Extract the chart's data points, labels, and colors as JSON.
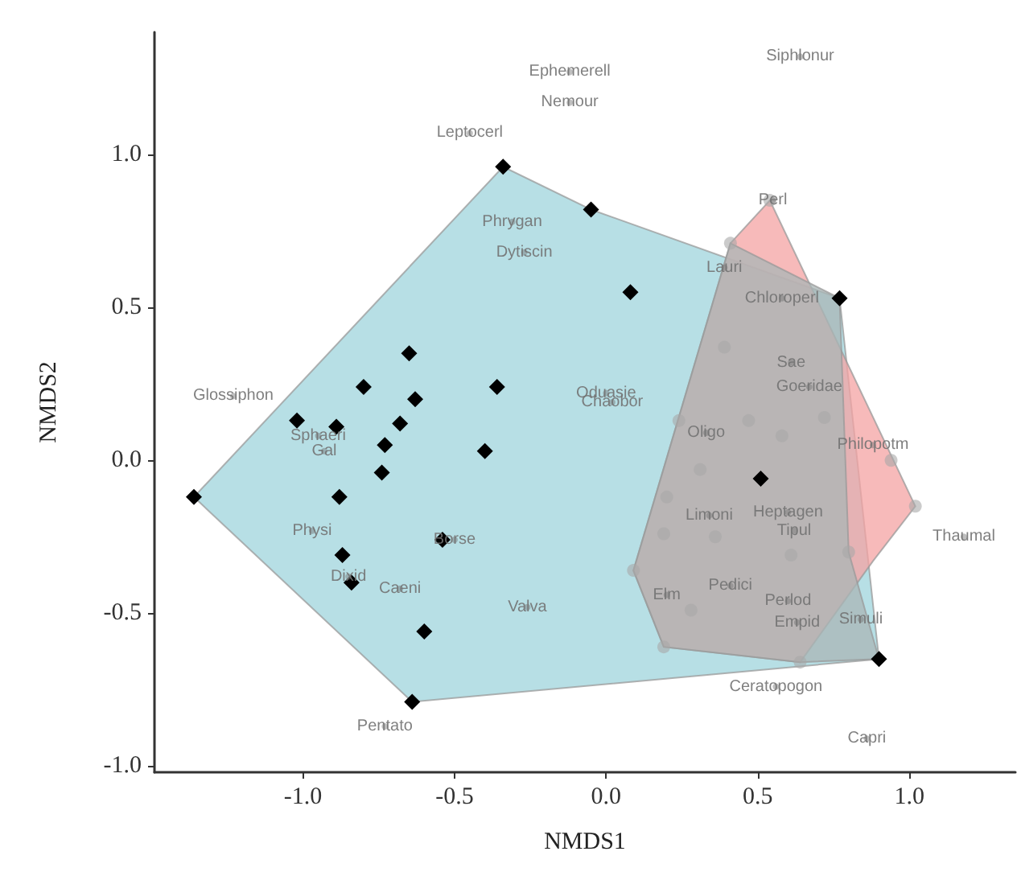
{
  "chart_data": {
    "type": "scatter",
    "xlabel": "NMDS1",
    "ylabel": "NMDS2",
    "xlim": [
      -1.49,
      1.35
    ],
    "ylim": [
      -1.02,
      1.4
    ],
    "xticks": [
      {
        "value": -1,
        "label": "-1.0"
      },
      {
        "value": -0.5,
        "label": "-0.5"
      },
      {
        "value": 0,
        "label": "0.0"
      },
      {
        "value": 0.5,
        "label": "0.5"
      },
      {
        "value": 1,
        "label": "1.0"
      }
    ],
    "yticks": [
      {
        "value": -1,
        "label": "-1.0"
      },
      {
        "value": -0.5,
        "label": "-0.5"
      },
      {
        "value": 0,
        "label": "0.0"
      },
      {
        "value": 0.5,
        "label": "0.5"
      },
      {
        "value": 1,
        "label": "1.0"
      }
    ],
    "grid": false,
    "series": [
      {
        "type": "area",
        "color": "#9fd4dc",
        "x": [
          -1.36,
          -0.34,
          -0.05,
          0.77,
          0.9,
          -0.64
        ],
        "values": [
          -0.12,
          0.96,
          0.82,
          0.53,
          -0.65,
          -0.79
        ]
      },
      {
        "type": "area",
        "color": "#f4a3a3",
        "x": [
          0.41,
          0.54,
          1.02,
          0.88,
          0.64,
          0.19,
          0.09
        ],
        "values": [
          0.71,
          0.85,
          -0.15,
          -0.33,
          -0.66,
          -0.61,
          -0.36
        ]
      },
      {
        "type": "area",
        "color": "#a9b5b5",
        "x": [
          0.41,
          0.77,
          0.8,
          0.9,
          0.64,
          0.19,
          0.09
        ],
        "values": [
          0.71,
          0.53,
          -0.3,
          -0.65,
          -0.66,
          -0.61,
          -0.36
        ]
      },
      {
        "marker": "circle",
        "color": "#a8a8a8",
        "x": [
          0.41,
          0.54,
          0.39,
          0.72,
          0.47,
          0.24,
          0.58,
          0.31,
          0.94,
          0.2,
          0.19,
          0.36,
          0.61,
          0.8,
          0.09,
          0.28,
          0.19,
          0.64,
          1.02
        ],
        "values": [
          0.71,
          0.85,
          0.37,
          0.14,
          0.13,
          0.13,
          0.08,
          -0.03,
          0,
          -0.12,
          -0.24,
          -0.25,
          -0.31,
          -0.3,
          -0.36,
          -0.49,
          -0.61,
          -0.66,
          -0.15
        ]
      },
      {
        "marker": "diamond",
        "color": "#000000",
        "x": [
          -0.34,
          -0.05,
          0.08,
          0.77,
          -0.65,
          -0.8,
          -0.63,
          -0.36,
          -1.02,
          -0.89,
          -0.68,
          -0.73,
          -0.4,
          -0.74,
          -1.36,
          -0.88,
          -0.54,
          -0.87,
          -0.84,
          -0.6,
          -0.64,
          0.51,
          0.9
        ],
        "values": [
          0.96,
          0.82,
          0.55,
          0.53,
          0.35,
          0.24,
          0.2,
          0.24,
          0.13,
          0.11,
          0.12,
          0.05,
          0.03,
          -0.04,
          -0.12,
          -0.12,
          -0.26,
          -0.31,
          -0.4,
          -0.56,
          -0.79,
          -0.06,
          -0.65
        ]
      },
      {
        "marker": "circle",
        "color": "#727272",
        "x": [
          -0.12,
          -0.12,
          0.64,
          -0.45,
          0.55,
          -0.31,
          -0.27,
          0.39,
          0.58,
          0.61,
          0.67,
          -1.23,
          0,
          0.02,
          -0.95,
          -0.93,
          0.33,
          0.88,
          -0.97,
          -0.5,
          0.34,
          0.6,
          0.62,
          -0.85,
          -0.68,
          -0.26,
          0.2,
          0.41,
          0.6,
          0.63,
          0.84,
          0.56,
          0.86,
          -0.73,
          1.18
        ],
        "values": [
          1.27,
          1.17,
          1.32,
          1.07,
          0.85,
          0.78,
          0.68,
          0.63,
          0.53,
          0.32,
          0.24,
          0.21,
          0.22,
          0.19,
          0.08,
          0.03,
          0.09,
          0.05,
          -0.23,
          -0.26,
          -0.18,
          -0.17,
          -0.23,
          -0.38,
          -0.42,
          -0.48,
          -0.44,
          -0.41,
          -0.46,
          -0.53,
          -0.52,
          -0.74,
          -0.91,
          -0.87,
          -0.25
        ],
        "value_labels": [
          "Ephemerell",
          "Nemour",
          "Siphlonur",
          "Leptocerl",
          "Perl",
          "Phrygan",
          "Dytiscin",
          "Lauri",
          "Chloroperl",
          "Sae",
          "Goeridae",
          "Glossiphon",
          "Oduasie",
          "Chaobor",
          "Sphaeri",
          "Gal",
          "Oligo",
          "Philopotm",
          "Physi",
          "Borse",
          "Limoni",
          "Heptagen",
          "Tipul",
          "Dixid",
          "Caeni",
          "Valva",
          "Elm",
          "Pedici",
          "Perlod",
          "Empid",
          "Simuli",
          "Ceratopogon",
          "Capri",
          "Pentato",
          "Thaumal"
        ]
      }
    ]
  }
}
